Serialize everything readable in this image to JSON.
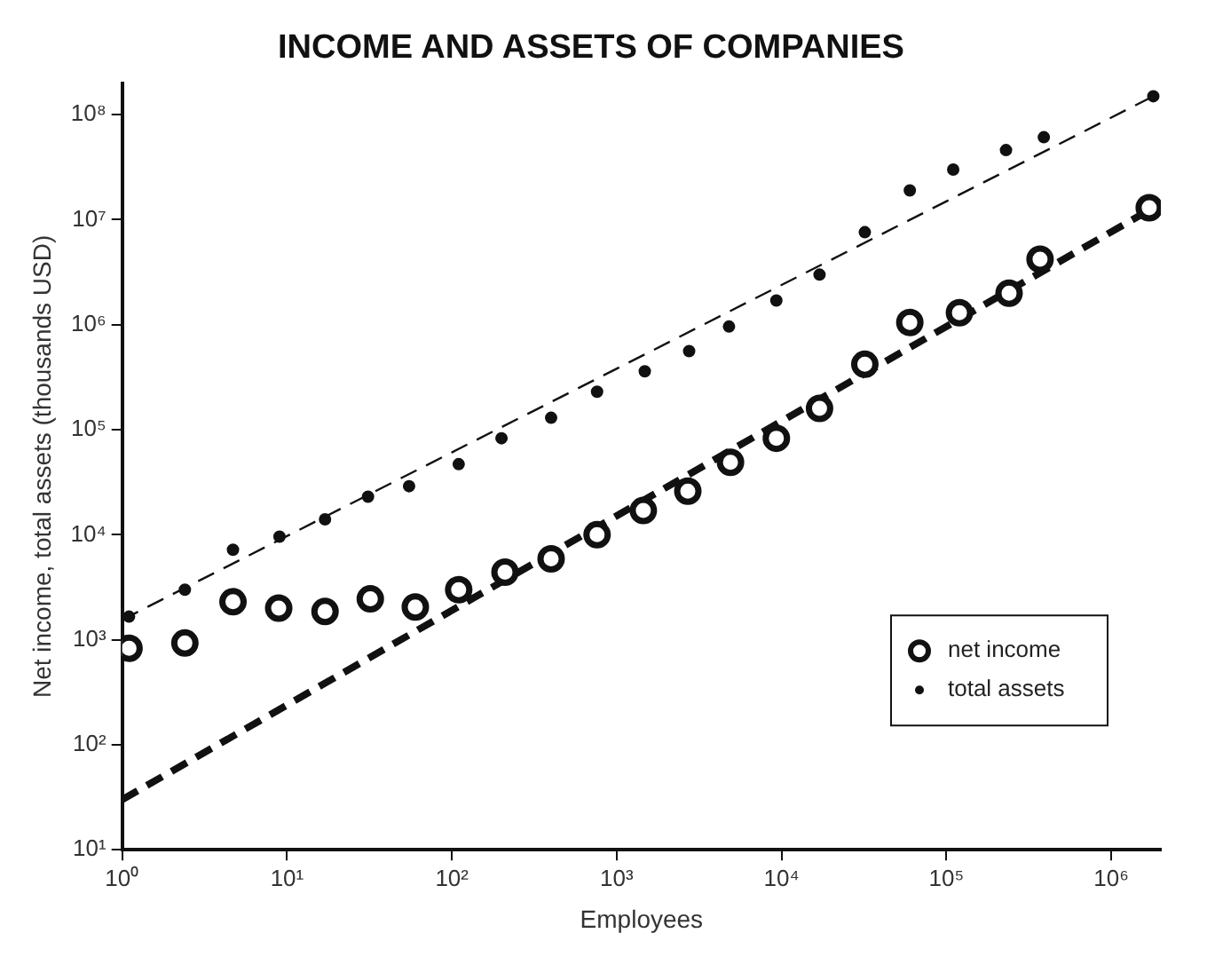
{
  "chart_data": {
    "type": "scatter",
    "title": "INCOME AND ASSETS OF COMPANIES",
    "xlabel": "Employees",
    "ylabel": "Net income, total assets (thousands USD)",
    "log": "xy",
    "grid": false,
    "legend": "bottom right",
    "xlim": [
      1,
      2000000
    ],
    "ylim": [
      10,
      200000000
    ],
    "xticks": [
      {
        "value": 1,
        "label": "10⁰"
      },
      {
        "value": 10,
        "label": "10¹"
      },
      {
        "value": 100,
        "label": "10²"
      },
      {
        "value": 1000,
        "label": "10³"
      },
      {
        "value": 10000,
        "label": "10⁴"
      },
      {
        "value": 100000,
        "label": "10⁵"
      },
      {
        "value": 1000000,
        "label": "10⁶"
      }
    ],
    "yticks": [
      {
        "value": 10,
        "label": "10¹"
      },
      {
        "value": 100,
        "label": "10²"
      },
      {
        "value": 1000,
        "label": "10³"
      },
      {
        "value": 10000,
        "label": "10⁴"
      },
      {
        "value": 100000,
        "label": "10⁵"
      },
      {
        "value": 1000000,
        "label": "10⁶"
      },
      {
        "value": 10000000,
        "label": "10⁷"
      },
      {
        "value": 100000000,
        "label": "10⁸"
      }
    ],
    "series": [
      {
        "name": "net income",
        "color": "#111111",
        "marker": "circle",
        "x": [
          1.1,
          2.4,
          4.7,
          8.9,
          17,
          32,
          60,
          110,
          210,
          400,
          760,
          1450,
          2700,
          4900,
          9300,
          17000,
          32000,
          60000,
          120000,
          240000,
          370000,
          1700000
        ],
        "values": [
          830,
          930,
          2300,
          2000,
          1860,
          2450,
          2050,
          3000,
          4400,
          5900,
          10000,
          17000,
          26000,
          49000,
          83000,
          160000,
          420000,
          1050000,
          1300000,
          2000000,
          4200000,
          13000000
        ]
      },
      {
        "name": "total assets",
        "color": "#111111",
        "marker": "circle",
        "x": [
          1.1,
          2.4,
          4.7,
          9,
          17,
          31,
          55,
          110,
          200,
          400,
          760,
          1480,
          2750,
          4800,
          9300,
          17000,
          32000,
          60000,
          110000,
          230000,
          390000,
          1800000
        ],
        "values": [
          1660,
          3000,
          7200,
          9600,
          14000,
          23000,
          29000,
          47000,
          83000,
          130000,
          230000,
          360000,
          560000,
          960000,
          1700000,
          3000000,
          7600000,
          19000000,
          30000000,
          46000000,
          61000000,
          150000000
        ]
      },
      {
        "type": "line",
        "color": "#111111",
        "line_style": "dashed",
        "marker": "none",
        "x": [
          1,
          1800000
        ],
        "values": [
          1550,
          150000000
        ]
      },
      {
        "type": "line",
        "color": "#111111",
        "line_style": "dashed",
        "marker": "none",
        "x": [
          1,
          1800000
        ],
        "values": [
          30,
          13000000
        ]
      }
    ]
  }
}
